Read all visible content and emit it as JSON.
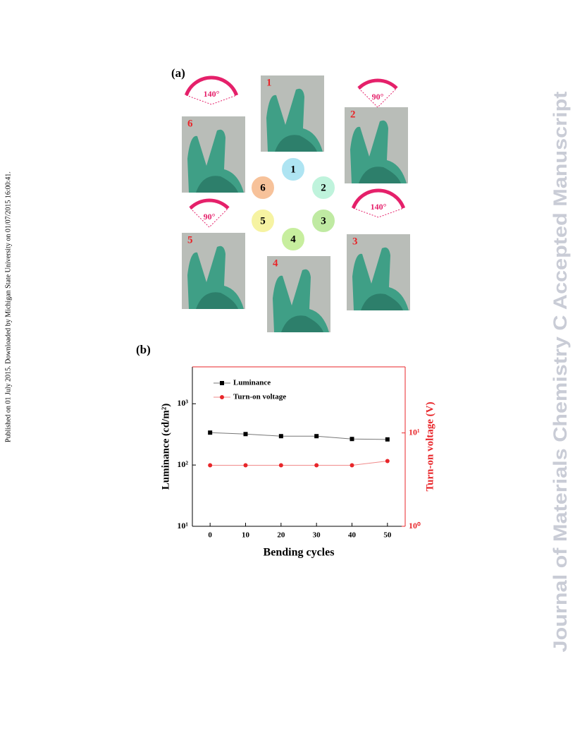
{
  "side_note": "Published on 01 July 2015. Downloaded by Michigan State University on 01/07/2015 16:00:41.",
  "watermark": "Journal of Materials Chemistry C Accepted Manuscript",
  "panels": {
    "a": "(a)",
    "b": "(b)"
  },
  "figure_a": {
    "photos": [
      "1",
      "2",
      "3",
      "4",
      "5",
      "6"
    ],
    "angles": [
      "140°",
      "90°",
      "140°",
      "90°"
    ],
    "cycle": [
      "1",
      "2",
      "3",
      "4",
      "5",
      "6"
    ]
  },
  "chart_data": {
    "type": "line",
    "x_label": "Bending cycles",
    "y_label": "Luminance (cd/m²)",
    "y2_label": "Turn-on voltage (V)",
    "x": [
      0,
      10,
      20,
      30,
      40,
      50
    ],
    "series": [
      {
        "name": "Luminance",
        "color": "#000000",
        "values": [
          338,
          320,
          296,
          296,
          266,
          262
        ]
      },
      {
        "name": "Turn-on voltage",
        "color": "#e8262a",
        "axis": "y2",
        "values": [
          4.5,
          4.5,
          4.5,
          4.5,
          4.5,
          5.0
        ]
      }
    ],
    "xlim": [
      -5,
      55
    ],
    "xticks": [
      0,
      10,
      20,
      30,
      40,
      50
    ],
    "ylim": [
      10,
      4000
    ],
    "yticks": [
      {
        "value": 10,
        "label": "10¹"
      },
      {
        "value": 100,
        "label": "10²"
      },
      {
        "value": 1000,
        "label": "10³"
      }
    ],
    "y2lim": [
      1,
      51
    ],
    "y2ticks": [
      {
        "value": 1,
        "label": "10⁰"
      },
      {
        "value": 10,
        "label": "10¹"
      }
    ],
    "log_scale": true,
    "legend": "upper left"
  }
}
